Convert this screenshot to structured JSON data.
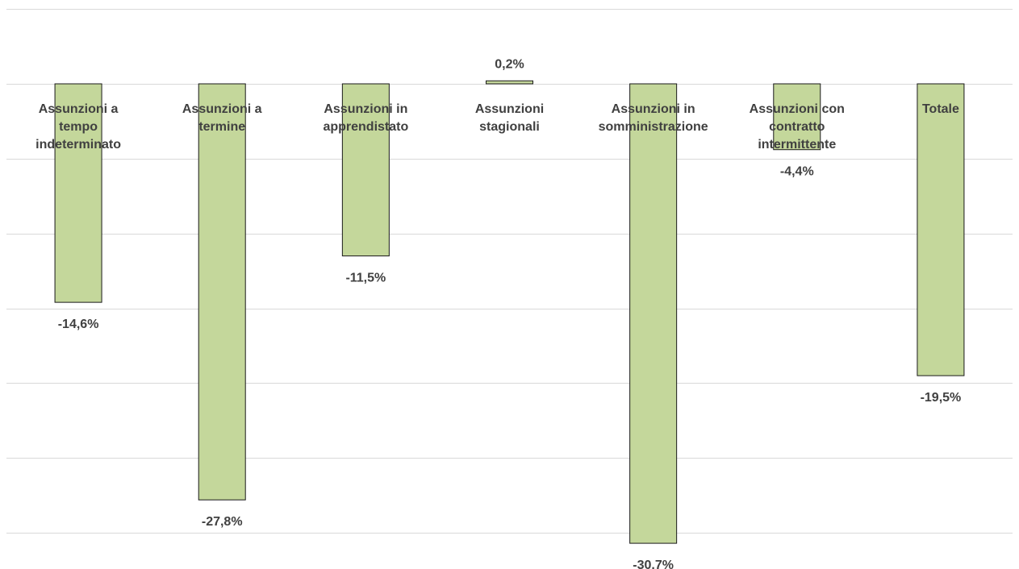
{
  "chart_data": {
    "type": "bar",
    "categories": [
      [
        "Assunzioni a",
        "tempo",
        "indeterminato"
      ],
      [
        "Assunzioni a",
        "termine"
      ],
      [
        "Assunzioni in",
        "apprendistato"
      ],
      [
        "Assunzioni",
        "stagionali"
      ],
      [
        "Assunzioni in",
        "somministrazione"
      ],
      [
        "Assunzioni con",
        "contratto",
        "intermittente"
      ],
      [
        "Totale"
      ]
    ],
    "values": [
      -14.6,
      -27.8,
      -11.5,
      0.2,
      -30.7,
      -4.4,
      -19.5
    ],
    "data_labels": [
      "-14,6%",
      "-27,8%",
      "-11,5%",
      "0,2%",
      "-30.7%",
      "-4,4%",
      "-19,5%"
    ],
    "title": "",
    "xlabel": "",
    "ylabel": "",
    "ylim": [
      -30.7,
      5
    ],
    "grid": true,
    "legend": "none",
    "colors": {
      "bar_fill": "#c4d79b",
      "bar_stroke": "#1a1a1a",
      "grid": "#d9d9d9",
      "text": "#404040"
    }
  }
}
